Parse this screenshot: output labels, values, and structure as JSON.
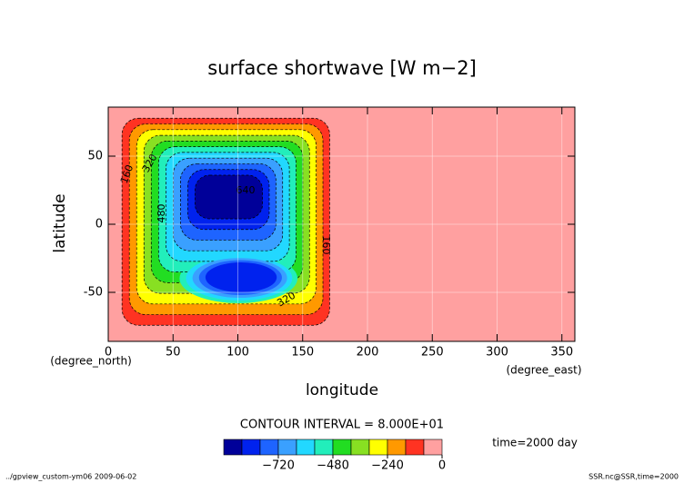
{
  "chart_data": {
    "type": "contour",
    "title": "surface shortwave [W m−2]",
    "x_label": "longitude",
    "y_label": "latitude",
    "y_unit": "(degree_north)",
    "x_unit": "(degree_east)",
    "xlim": [
      0,
      360
    ],
    "ylim": [
      -86,
      86
    ],
    "xticks": [
      0,
      50,
      100,
      150,
      200,
      250,
      300,
      350
    ],
    "yticks": [
      -50,
      0,
      50
    ],
    "grid": true,
    "levels": [
      -960,
      -880,
      -800,
      -720,
      -640,
      -560,
      -480,
      -400,
      -320,
      -240,
      -160,
      -80,
      0
    ],
    "colors": [
      "#000099",
      "#0022ee",
      "#1e64ff",
      "#3aa0ff",
      "#22d8ff",
      "#22eebb",
      "#22dd22",
      "#88e022",
      "#ffff00",
      "#ff9900",
      "#ff3322",
      "#ffa0a0"
    ],
    "contour_labels": [
      "160",
      "320",
      "480",
      "640",
      "160",
      "320"
    ],
    "contour_interval": "CONTOUR INTERVAL = 8.000E+01",
    "colorbar_ticks": [
      {
        "value": -720,
        "label": "−720"
      },
      {
        "value": -480,
        "label": "−480"
      },
      {
        "value": -240,
        "label": "−240"
      },
      0
    ],
    "time_label": "time=2000 day",
    "footer_left": "../gpview_custom-ym06  2009-06-02",
    "footer_right": "SSR.nc@SSR,time=2000"
  }
}
